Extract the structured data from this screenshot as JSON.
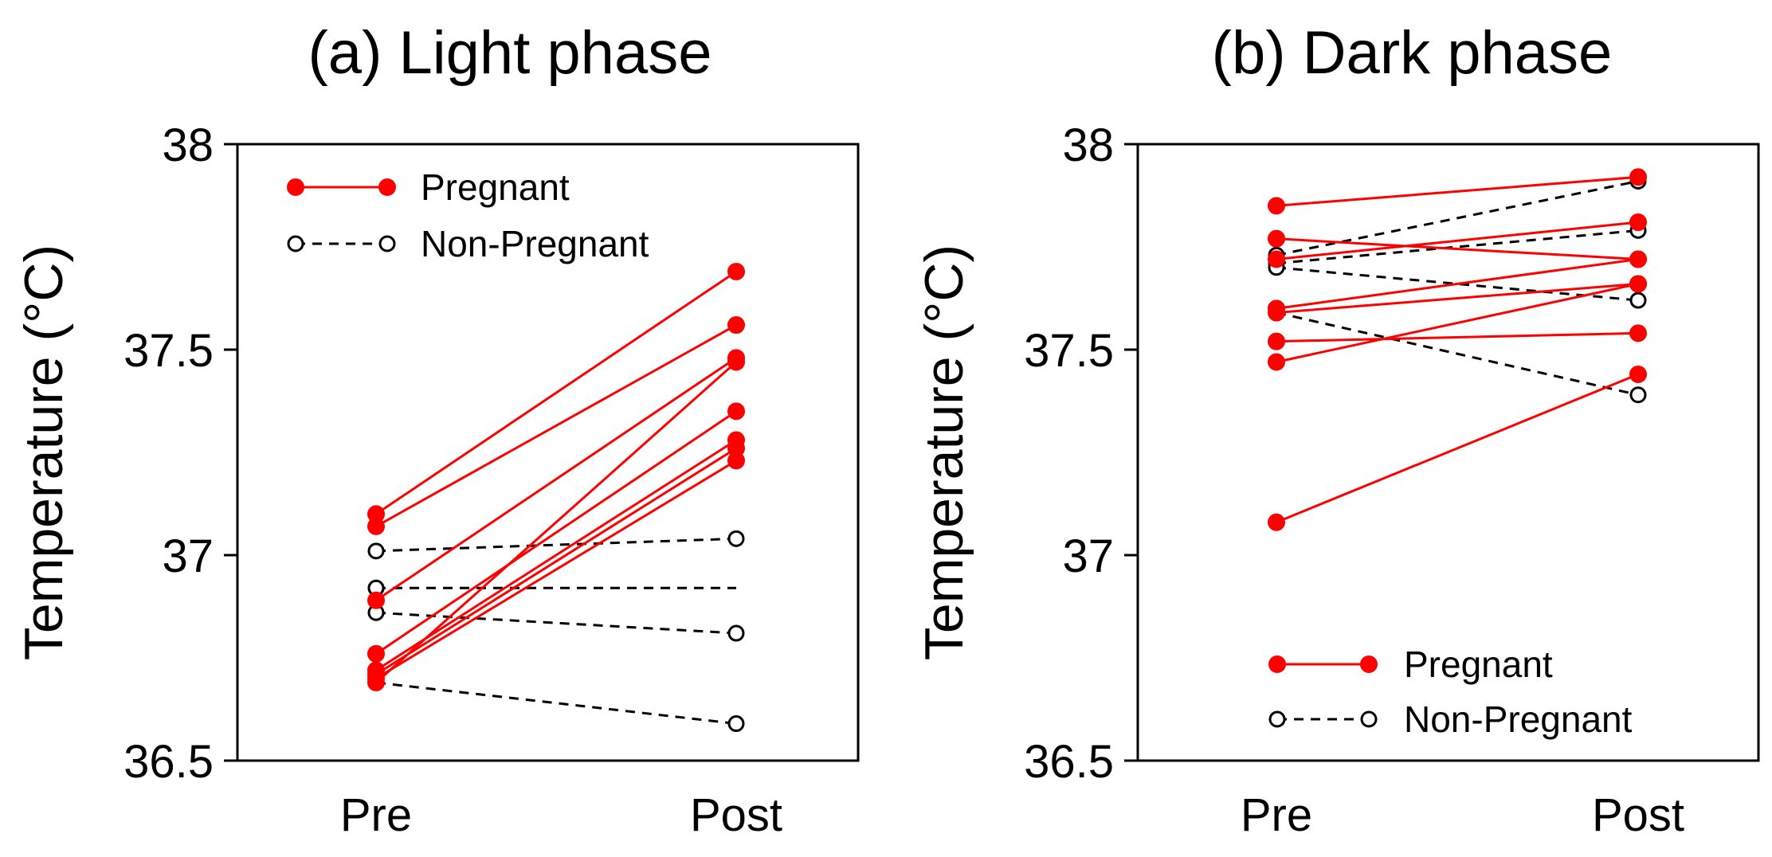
{
  "chart_data": [
    {
      "type": "line",
      "title": "(a) Light phase",
      "xlabel": "",
      "ylabel": "Temperature (°C)",
      "categories": [
        "Pre",
        "Post"
      ],
      "ylim": [
        36.5,
        38
      ],
      "yticks": [
        "36.5",
        "37",
        "37.5",
        "38"
      ],
      "legend": {
        "placement": "top-left",
        "entries": [
          {
            "label": "Pregnant",
            "series": "pregnant"
          },
          {
            "label": "Non-Pregnant",
            "series": "nonpregnant"
          }
        ]
      },
      "series": [
        {
          "name": "Pregnant",
          "key": "pregnant",
          "color": "#ff0000",
          "style": "solid",
          "marker": "filled",
          "pairs": [
            [
              37.1,
              37.69
            ],
            [
              37.07,
              37.56
            ],
            [
              36.89,
              37.48
            ],
            [
              36.76,
              37.35
            ],
            [
              36.72,
              37.28
            ],
            [
              36.71,
              37.26
            ],
            [
              36.7,
              37.23
            ],
            [
              36.69,
              37.47
            ]
          ]
        },
        {
          "name": "Non-Pregnant",
          "key": "nonpregnant",
          "color": "#000000",
          "style": "dashed",
          "marker": "open",
          "pairs": [
            [
              37.01,
              37.04
            ],
            [
              36.92,
              36.92
            ],
            [
              36.86,
              36.81
            ],
            [
              36.69,
              36.59
            ]
          ]
        }
      ]
    },
    {
      "type": "line",
      "title": "(b) Dark phase",
      "xlabel": "",
      "ylabel": "Temperature (°C)",
      "categories": [
        "Pre",
        "Post"
      ],
      "ylim": [
        36.5,
        38
      ],
      "yticks": [
        "36.5",
        "37",
        "37.5",
        "38"
      ],
      "legend": {
        "placement": "bottom-center",
        "entries": [
          {
            "label": "Pregnant",
            "series": "pregnant"
          },
          {
            "label": "Non-Pregnant",
            "series": "nonpregnant"
          }
        ]
      },
      "series": [
        {
          "name": "Pregnant",
          "key": "pregnant",
          "color": "#ff0000",
          "style": "solid",
          "marker": "filled",
          "pairs": [
            [
              37.85,
              37.92
            ],
            [
              37.77,
              37.72
            ],
            [
              37.72,
              37.81
            ],
            [
              37.6,
              37.72
            ],
            [
              37.59,
              37.66
            ],
            [
              37.52,
              37.54
            ],
            [
              37.47,
              37.66
            ],
            [
              37.08,
              37.44
            ]
          ]
        },
        {
          "name": "Non-Pregnant",
          "key": "nonpregnant",
          "color": "#000000",
          "style": "dashed",
          "marker": "open",
          "pairs": [
            [
              37.73,
              37.91
            ],
            [
              37.71,
              37.79
            ],
            [
              37.7,
              37.62
            ],
            [
              37.59,
              37.39
            ]
          ]
        }
      ]
    }
  ]
}
